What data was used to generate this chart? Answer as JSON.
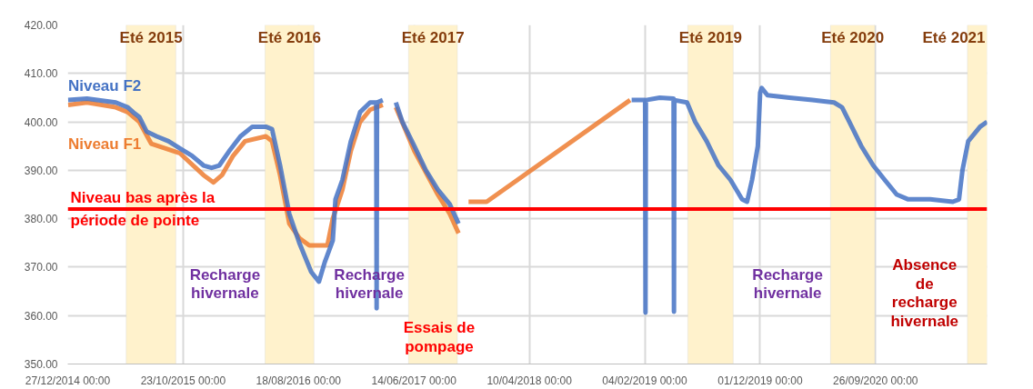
{
  "chart_data": {
    "type": "line",
    "xlim": [
      "2014-12-27",
      "2021-07-13"
    ],
    "xticks": [
      {
        "value": "2014-12-27",
        "label": "27/12/2014 00:00"
      },
      {
        "value": "2015-10-23",
        "label": "23/10/2015 00:00"
      },
      {
        "value": "2016-08-18",
        "label": "18/08/2016 00:00"
      },
      {
        "value": "2017-06-14",
        "label": "14/06/2017 00:00"
      },
      {
        "value": "2018-04-10",
        "label": "10/04/2018 00:00"
      },
      {
        "value": "2019-02-04",
        "label": "04/02/2019 00:00"
      },
      {
        "value": "2019-12-01",
        "label": "01/12/2019 00:00"
      },
      {
        "value": "2020-09-26",
        "label": "26/09/2020 00:00"
      }
    ],
    "ylim": [
      350,
      420
    ],
    "yticks": [
      {
        "value": 350,
        "label": "350.00"
      },
      {
        "value": 360,
        "label": "360.00"
      },
      {
        "value": 370,
        "label": "370.00"
      },
      {
        "value": 380,
        "label": "380.00"
      },
      {
        "value": 390,
        "label": "390.00"
      },
      {
        "value": 400,
        "label": "400.00"
      },
      {
        "value": 410,
        "label": "410.00"
      },
      {
        "value": 420,
        "label": "420.00"
      }
    ],
    "grid": true,
    "legend": false,
    "line_style": "solid",
    "marker": "none",
    "series": [
      {
        "name": "Niveau F1",
        "color": "#ed7d31",
        "x": [
          "2014-12-28",
          "2015-02-15",
          "2015-05-01",
          "2015-06-01",
          "2015-07-01",
          "2015-08-01",
          "2015-10-15",
          "2015-12-15",
          "2016-01-10",
          "2016-02-01",
          "2016-03-01",
          "2016-04-01",
          "2016-05-25",
          "2016-06-10",
          "2016-07-01",
          "2016-07-25",
          "2016-08-20",
          "2016-09-15",
          "2016-10-15",
          "2016-11-01",
          "2016-11-15",
          "2016-12-10",
          "2017-01-01",
          "2017-01-25",
          "2017-02-20",
          "2017-03-25",
          "2017-04-10",
          "2017-04-28",
          "2017-06-15",
          "2017-08-15",
          "2017-09-15",
          "2017-10-08",
          "2017-10-20",
          "2017-11-03",
          "2017-12-20",
          "2018-12-28"
        ],
        "values": [
          403.5,
          404,
          403,
          402,
          400,
          395.5,
          393.5,
          389,
          387.5,
          389,
          393,
          396,
          397,
          396,
          389,
          379,
          376,
          374.5,
          374.5,
          374.5,
          380,
          386,
          394,
          400,
          402.5,
          403.5,
          null,
          403,
          394,
          385,
          381,
          377,
          null,
          383.5,
          383.5,
          404.5
        ]
      },
      {
        "name": "Niveau F2",
        "color": "#4472c4",
        "x": [
          "2014-12-28",
          "2015-02-15",
          "2015-05-01",
          "2015-06-01",
          "2015-06-15",
          "2015-07-01",
          "2015-07-20",
          "2015-08-15",
          "2015-09-15",
          "2015-10-15",
          "2015-11-15",
          "2015-12-15",
          "2016-01-05",
          "2016-01-25",
          "2016-02-20",
          "2016-03-20",
          "2016-04-20",
          "2016-05-25",
          "2016-06-10",
          "2016-07-01",
          "2016-07-25",
          "2016-08-20",
          "2016-09-20",
          "2016-10-10",
          "2016-10-25",
          "2016-11-15",
          "2016-11-22",
          "2016-12-10",
          "2017-01-01",
          "2017-01-25",
          "2017-02-20",
          "2017-03-08",
          "2017-03-09",
          "2017-03-10",
          "2017-03-25",
          "2017-04-10",
          "2017-04-28",
          "2017-05-15",
          "2017-06-15",
          "2017-07-15",
          "2017-08-15",
          "2017-09-15",
          "2017-10-08",
          "2018-06-01",
          "2019-01-01",
          "2019-01-20",
          "2019-02-05",
          "2019-02-06",
          "2019-02-07",
          "2019-03-15",
          "2019-04-20",
          "2019-04-21",
          "2019-04-22",
          "2019-05-25",
          "2019-06-15",
          "2019-07-15",
          "2019-08-15",
          "2019-09-15",
          "2019-10-15",
          "2019-10-28",
          "2019-11-10",
          "2019-11-25",
          "2019-12-01",
          "2019-12-05",
          "2019-12-20",
          "2020-02-15",
          "2020-04-15",
          "2020-05-10",
          "2020-06-10",
          "2020-07-01",
          "2020-07-20",
          "2020-08-20",
          "2020-09-20",
          "2020-10-20",
          "2020-11-20",
          "2020-12-20",
          "2021-02-15",
          "2021-04-15",
          "2021-05-01",
          "2021-05-10",
          "2021-05-25",
          "2021-06-25",
          "2021-07-13"
        ],
        "values": [
          404.5,
          404.8,
          404,
          403,
          402,
          401,
          398,
          397,
          396,
          394.5,
          393,
          391,
          390.5,
          391,
          394,
          397,
          399,
          399,
          398.5,
          391,
          381,
          375,
          369,
          367,
          371,
          375.5,
          384,
          388,
          396,
          402,
          404,
          404,
          361.5,
          404,
          404.5,
          null,
          404,
          400,
          395,
          390,
          386,
          383,
          379,
          null,
          404.5,
          404.5,
          404.5,
          360.6,
          404.5,
          405,
          404.8,
          360.8,
          404.5,
          404,
          400,
          396,
          391,
          388,
          384,
          383.5,
          388,
          395,
          406,
          407,
          405.5,
          405,
          404.5,
          404.3,
          404,
          403,
          400,
          395,
          391,
          388,
          385,
          384,
          384,
          383.5,
          384,
          390,
          396,
          399,
          400
        ]
      }
    ],
    "bands": [
      {
        "axis": "x",
        "from": "2015-05-28",
        "to": "2015-10-04",
        "label": "Eté 2015",
        "color": "#fff2cc"
      },
      {
        "axis": "x",
        "from": "2016-05-23",
        "to": "2016-09-27",
        "label": "Eté 2016",
        "color": "#fff2cc"
      },
      {
        "axis": "x",
        "from": "2017-05-31",
        "to": "2017-10-05",
        "label": "Eté 2017",
        "color": "#fff2cc"
      },
      {
        "axis": "x",
        "from": "2019-05-27",
        "to": "2019-09-22",
        "label": "Eté 2019",
        "color": "#fff2cc"
      },
      {
        "axis": "x",
        "from": "2020-06-01",
        "to": "2020-09-24",
        "label": "Eté 2020",
        "color": "#fff2cc"
      },
      {
        "axis": "x",
        "from": "2021-05-23",
        "to": "2021-07-13",
        "label": "Eté 2021",
        "color": "#fff2cc"
      }
    ],
    "ref_lines": [
      {
        "axis": "y",
        "value": 382,
        "label": "Niveau bas après la\npériode de pointe",
        "color": "#ff0000",
        "line_style": "solid"
      }
    ],
    "annotations": [
      "Recharge\nhivernale",
      "Recharge\nhivernale",
      "Essais de\npompage",
      "Recharge\nhivernale",
      "Absence\nde\nrecharge\nhivernale"
    ]
  }
}
